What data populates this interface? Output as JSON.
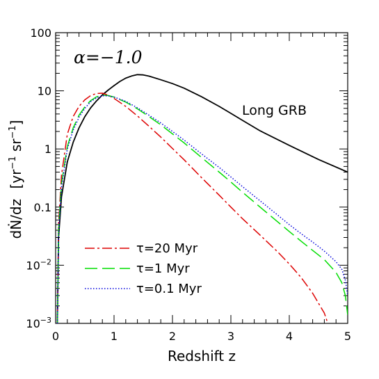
{
  "chart_data": {
    "type": "line",
    "title": "",
    "xlabel": "Redshift z",
    "ylabel_parts": {
      "main": "dṄ/dz",
      "open": "[yr",
      "exp1": "−1",
      "mid": " sr",
      "exp2": "−1",
      "close": "]"
    },
    "x_scale": "linear",
    "y_scale": "log",
    "xlim": [
      0,
      5
    ],
    "ylim": [
      0.001,
      100
    ],
    "x_ticks": [
      {
        "value": 0,
        "label": "0"
      },
      {
        "value": 1,
        "label": "1"
      },
      {
        "value": 2,
        "label": "2"
      },
      {
        "value": 3,
        "label": "3"
      },
      {
        "value": 4,
        "label": "4"
      },
      {
        "value": 5,
        "label": "5"
      }
    ],
    "y_ticks": [
      {
        "value": 0.001,
        "base": "10",
        "exp": "−3"
      },
      {
        "value": 0.01,
        "base": "10",
        "exp": "−2"
      },
      {
        "value": 0.1,
        "base": "0.1",
        "exp": ""
      },
      {
        "value": 1,
        "base": "1",
        "exp": ""
      },
      {
        "value": 10,
        "base": "10",
        "exp": ""
      },
      {
        "value": 100,
        "base": "100",
        "exp": ""
      }
    ],
    "annotations": [
      {
        "id": "alpha",
        "text": "α=−1.0"
      },
      {
        "id": "grb",
        "text": "Long GRB"
      }
    ],
    "legend_placement": "bottom-left",
    "series": [
      {
        "name": "",
        "legend_label": "",
        "color": "#000000",
        "dash": "",
        "points": [
          [
            0.03,
            0.001
          ],
          [
            0.05,
            0.03
          ],
          [
            0.1,
            0.15
          ],
          [
            0.2,
            0.6
          ],
          [
            0.3,
            1.3
          ],
          [
            0.4,
            2.3
          ],
          [
            0.5,
            3.6
          ],
          [
            0.6,
            5.1
          ],
          [
            0.7,
            6.7
          ],
          [
            0.8,
            8.5
          ],
          [
            0.9,
            10.3
          ],
          [
            1.0,
            12.3
          ],
          [
            1.1,
            14.5
          ],
          [
            1.2,
            16.5
          ],
          [
            1.3,
            18.0
          ],
          [
            1.4,
            19.0
          ],
          [
            1.5,
            18.8
          ],
          [
            1.6,
            17.9
          ],
          [
            1.8,
            15.5
          ],
          [
            2.0,
            13.3
          ],
          [
            2.2,
            11.1
          ],
          [
            2.5,
            7.9
          ],
          [
            2.8,
            5.4
          ],
          [
            3.0,
            4.1
          ],
          [
            3.2,
            3.1
          ],
          [
            3.5,
            2.05
          ],
          [
            4.0,
            1.15
          ],
          [
            4.5,
            0.66
          ],
          [
            5.0,
            0.4
          ]
        ]
      },
      {
        "name": "τ=20 Myr",
        "legend_label": "τ=20 Myr",
        "color": "#dd0000",
        "dash": "14,4,3,4",
        "points": [
          [
            0.03,
            0.001
          ],
          [
            0.05,
            0.05
          ],
          [
            0.1,
            0.35
          ],
          [
            0.2,
            1.8
          ],
          [
            0.3,
            3.6
          ],
          [
            0.4,
            5.4
          ],
          [
            0.5,
            7.0
          ],
          [
            0.6,
            8.3
          ],
          [
            0.7,
            9.0
          ],
          [
            0.8,
            9.1
          ],
          [
            0.9,
            8.4
          ],
          [
            1.0,
            7.4
          ],
          [
            1.2,
            5.4
          ],
          [
            1.4,
            3.7
          ],
          [
            1.6,
            2.45
          ],
          [
            1.8,
            1.6
          ],
          [
            2.0,
            1.02
          ],
          [
            2.2,
            0.65
          ],
          [
            2.5,
            0.32
          ],
          [
            2.8,
            0.16
          ],
          [
            3.0,
            0.1
          ],
          [
            3.2,
            0.063
          ],
          [
            3.5,
            0.033
          ],
          [
            3.8,
            0.017
          ],
          [
            4.0,
            0.0105
          ],
          [
            4.2,
            0.0062
          ],
          [
            4.4,
            0.0033
          ],
          [
            4.6,
            0.0015
          ],
          [
            4.66,
            0.001
          ]
        ]
      },
      {
        "name": "τ=1 Myr",
        "legend_label": "τ=1 Myr",
        "color": "#00dd00",
        "dash": "18,7",
        "points": [
          [
            0.03,
            0.001
          ],
          [
            0.05,
            0.04
          ],
          [
            0.1,
            0.25
          ],
          [
            0.2,
            1.1
          ],
          [
            0.3,
            2.3
          ],
          [
            0.4,
            3.8
          ],
          [
            0.5,
            5.3
          ],
          [
            0.6,
            6.8
          ],
          [
            0.7,
            7.9
          ],
          [
            0.8,
            8.4
          ],
          [
            0.9,
            8.3
          ],
          [
            1.0,
            7.8
          ],
          [
            1.2,
            6.4
          ],
          [
            1.4,
            4.9
          ],
          [
            1.6,
            3.6
          ],
          [
            1.8,
            2.6
          ],
          [
            2.0,
            1.82
          ],
          [
            2.2,
            1.27
          ],
          [
            2.5,
            0.71
          ],
          [
            2.8,
            0.4
          ],
          [
            3.0,
            0.27
          ],
          [
            3.2,
            0.18
          ],
          [
            3.5,
            0.1
          ],
          [
            3.8,
            0.056
          ],
          [
            4.0,
            0.038
          ],
          [
            4.2,
            0.026
          ],
          [
            4.4,
            0.018
          ],
          [
            4.6,
            0.0125
          ],
          [
            4.8,
            0.0075
          ],
          [
            4.9,
            0.005
          ],
          [
            4.96,
            0.003
          ],
          [
            5.0,
            0.0014
          ]
        ]
      },
      {
        "name": "τ=0.1 Myr",
        "legend_label": "τ=0.1 Myr",
        "color": "#0000dd",
        "dash": "1.5,2.5",
        "points": [
          [
            0.03,
            0.001
          ],
          [
            0.05,
            0.035
          ],
          [
            0.1,
            0.22
          ],
          [
            0.2,
            1.0
          ],
          [
            0.3,
            2.1
          ],
          [
            0.4,
            3.5
          ],
          [
            0.5,
            5.0
          ],
          [
            0.6,
            6.5
          ],
          [
            0.7,
            7.6
          ],
          [
            0.8,
            8.2
          ],
          [
            0.9,
            8.2
          ],
          [
            1.0,
            7.8
          ],
          [
            1.2,
            6.6
          ],
          [
            1.4,
            5.1
          ],
          [
            1.6,
            3.8
          ],
          [
            1.8,
            2.8
          ],
          [
            2.0,
            2.0
          ],
          [
            2.2,
            1.42
          ],
          [
            2.5,
            0.82
          ],
          [
            2.8,
            0.48
          ],
          [
            3.0,
            0.33
          ],
          [
            3.2,
            0.225
          ],
          [
            3.5,
            0.128
          ],
          [
            3.8,
            0.073
          ],
          [
            4.0,
            0.05
          ],
          [
            4.2,
            0.035
          ],
          [
            4.4,
            0.025
          ],
          [
            4.6,
            0.0175
          ],
          [
            4.8,
            0.0115
          ],
          [
            4.9,
            0.0085
          ],
          [
            4.96,
            0.0055
          ],
          [
            5.0,
            0.003
          ]
        ]
      }
    ]
  }
}
